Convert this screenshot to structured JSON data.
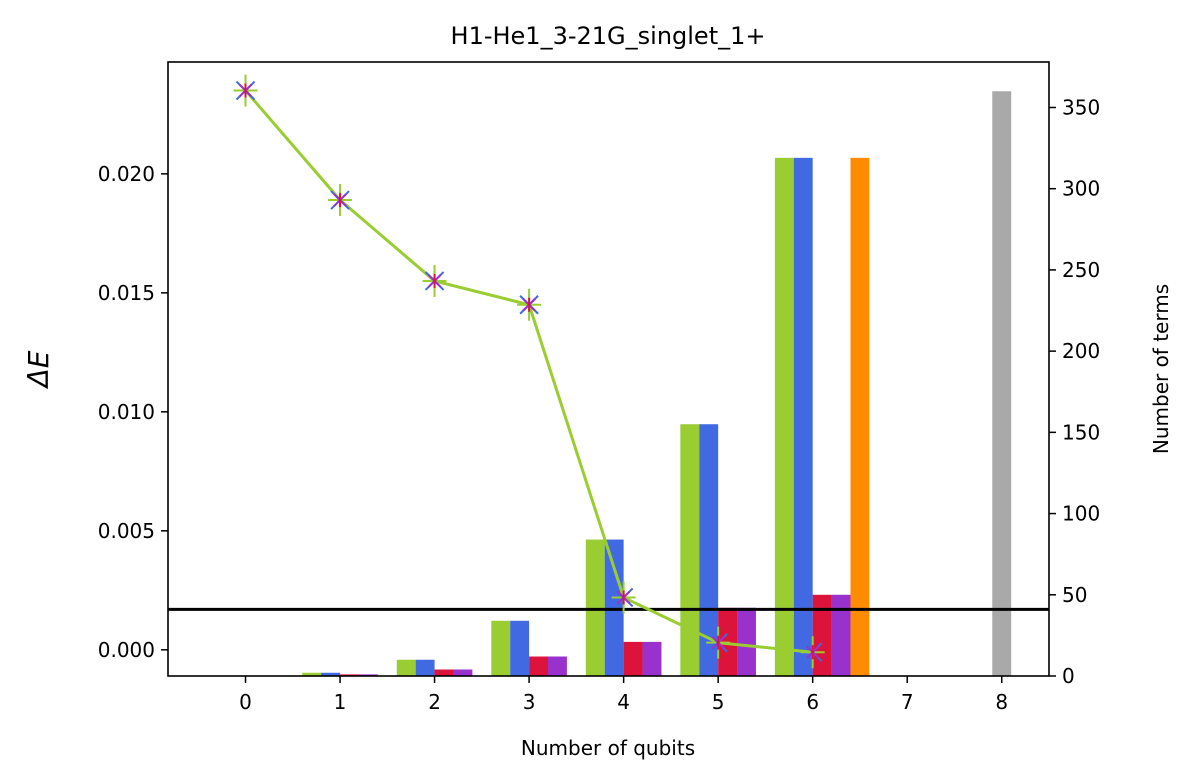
{
  "chart_data": {
    "type": "bar",
    "title": "H1-He1_3-21G_singlet_1+",
    "xlabel": "Number of qubits",
    "ylabel_left": "ΔE",
    "ylabel_right": "Number of terms",
    "x_categories": [
      0,
      1,
      2,
      3,
      4,
      5,
      6,
      7,
      8
    ],
    "x_tick_labels": [
      "0",
      "1",
      "2",
      "3",
      "4",
      "5",
      "6",
      "7",
      "8"
    ],
    "ylim_left": [
      -0.0011,
      0.0247
    ],
    "yticks_left": [
      "0.000",
      "0.005",
      "0.010",
      "0.015",
      "0.020"
    ],
    "yticks_left_values": [
      0.0,
      0.005,
      0.01,
      0.015,
      0.02
    ],
    "ylim_right": [
      0,
      378
    ],
    "yticks_right": [
      "0",
      "50",
      "100",
      "150",
      "200",
      "250",
      "300",
      "350"
    ],
    "yticks_right_values": [
      0,
      50,
      100,
      150,
      200,
      250,
      300,
      350
    ],
    "hline_right": 41,
    "bar_series": [
      {
        "color": "#9acd32",
        "offset": -1.5,
        "x": [
          1,
          2,
          3,
          4,
          5,
          6
        ],
        "values": [
          2,
          10,
          34,
          84,
          155,
          319
        ]
      },
      {
        "color": "#4169e1",
        "offset": -0.5,
        "x": [
          1,
          2,
          3,
          4,
          5,
          6
        ],
        "values": [
          2,
          10,
          34,
          84,
          155,
          319
        ]
      },
      {
        "color": "#dc143c",
        "offset": 0.5,
        "x": [
          1,
          2,
          3,
          4,
          5,
          6
        ],
        "values": [
          1,
          4,
          12,
          21,
          42,
          50
        ]
      },
      {
        "color": "#9932cc",
        "offset": 1.5,
        "x": [
          1,
          2,
          3,
          4,
          5,
          6
        ],
        "values": [
          1,
          4,
          12,
          21,
          42,
          50
        ]
      },
      {
        "color": "#ff8c00",
        "offset": 2.5,
        "x": [
          6
        ],
        "values": [
          319
        ]
      },
      {
        "color": "#a9a9a9",
        "offset": 0,
        "x": [
          8
        ],
        "values": [
          360
        ]
      }
    ],
    "line_series": {
      "color": "#9acd32",
      "x": [
        0,
        1,
        2,
        3,
        4,
        5,
        6
      ],
      "values": [
        0.0235,
        0.0189,
        0.0155,
        0.0145,
        0.0022,
        0.0003,
        -0.0001
      ],
      "marker_colors": [
        "#9acd32",
        "#4169e1",
        "#dc143c",
        "#9932cc"
      ]
    }
  }
}
